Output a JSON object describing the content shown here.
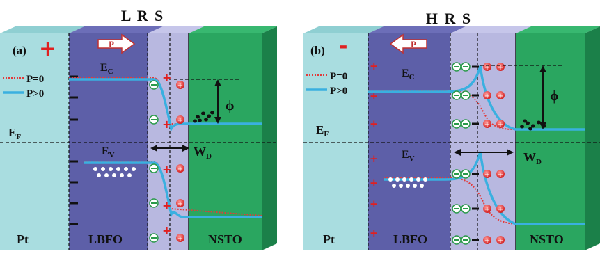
{
  "panels": [
    {
      "title": "L R S",
      "panel_label": "(a)",
      "pt_sign": "+",
      "polarization_label": "P",
      "polarization_direction": "right",
      "legend": [
        "P=0",
        "P>0"
      ],
      "band_labels": {
        "ec": "E",
        "ec_sub": "C",
        "ev": "E",
        "ev_sub": "V",
        "ef": "E",
        "ef_sub": "F"
      },
      "barrier_label": "ϕ",
      "depletion_label": "W",
      "depletion_sub": "D",
      "layers": [
        "Pt",
        "LBFO",
        "NSTO"
      ]
    },
    {
      "title": "H R S",
      "panel_label": "(b)",
      "pt_sign": "-",
      "polarization_label": "P",
      "polarization_direction": "left",
      "legend": [
        "P=0",
        "P>0"
      ],
      "band_labels": {
        "ec": "E",
        "ec_sub": "C",
        "ev": "E",
        "ev_sub": "V",
        "ef": "E",
        "ef_sub": "F"
      },
      "barrier_label": "ϕ",
      "depletion_label": "W",
      "depletion_sub": "D",
      "layers": [
        "Pt",
        "LBFO",
        "NSTO"
      ]
    }
  ],
  "colors": {
    "pt": "#a9dde0",
    "lbfo": "#5d5fa8",
    "interface": "#b8b8e0",
    "nsto": "#2aa660",
    "p0_curve": "#e23a3a",
    "p_curve": "#3ab0e0",
    "sign_red": "#e02020"
  }
}
